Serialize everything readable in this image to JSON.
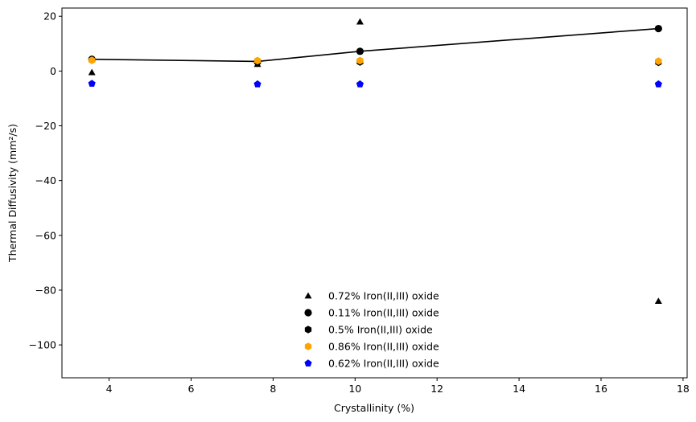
{
  "chart_data": {
    "type": "scatter",
    "title": "",
    "xlabel": "Crystallinity (%)",
    "ylabel": "Thermal Diffusivity (mm²/s)",
    "xlim": [
      2.85,
      18.1
    ],
    "ylim": [
      -112,
      23
    ],
    "xticks": [
      4,
      6,
      8,
      10,
      12,
      14,
      16,
      18
    ],
    "yticks": [
      20,
      0,
      -20,
      -40,
      -60,
      -80,
      -100
    ],
    "grid": false,
    "legend_position": "lower-center",
    "series": [
      {
        "name": "0.72% Iron(II,III) oxide",
        "marker": "triangle",
        "color": "#000000",
        "x": [
          3.58,
          7.62,
          10.12,
          17.4
        ],
        "y": [
          -0.5,
          2.5,
          18.0,
          -84.0
        ]
      },
      {
        "name": "0.11% Iron(II,III) oxide",
        "marker": "circle",
        "color": "#000000",
        "x": [
          3.58,
          7.62,
          10.12,
          17.4
        ],
        "y": [
          4.3,
          3.5,
          7.2,
          15.5
        ]
      },
      {
        "name": "0.5% Iron(II,III) oxide",
        "marker": "hexagon",
        "color": "#000000",
        "x": [
          3.58,
          7.62,
          10.12,
          17.4
        ],
        "y": [
          4.0,
          3.3,
          3.3,
          3.2
        ]
      },
      {
        "name": "0.86% Iron(II,III) oxide",
        "marker": "hexagon",
        "color": "#ffa500",
        "x": [
          3.58,
          7.62,
          10.12,
          17.4
        ],
        "y": [
          3.9,
          3.8,
          3.8,
          3.6
        ]
      },
      {
        "name": "0.62% Iron(II,III) oxide",
        "marker": "pentagon",
        "color": "#0000ff",
        "x": [
          3.58,
          7.62,
          10.12,
          17.4
        ],
        "y": [
          -4.6,
          -4.8,
          -4.8,
          -4.8
        ]
      }
    ],
    "trend_line": {
      "color": "#000000",
      "x": [
        3.58,
        7.62,
        10.12,
        17.4
      ],
      "y": [
        4.3,
        3.5,
        7.2,
        15.5
      ]
    }
  }
}
